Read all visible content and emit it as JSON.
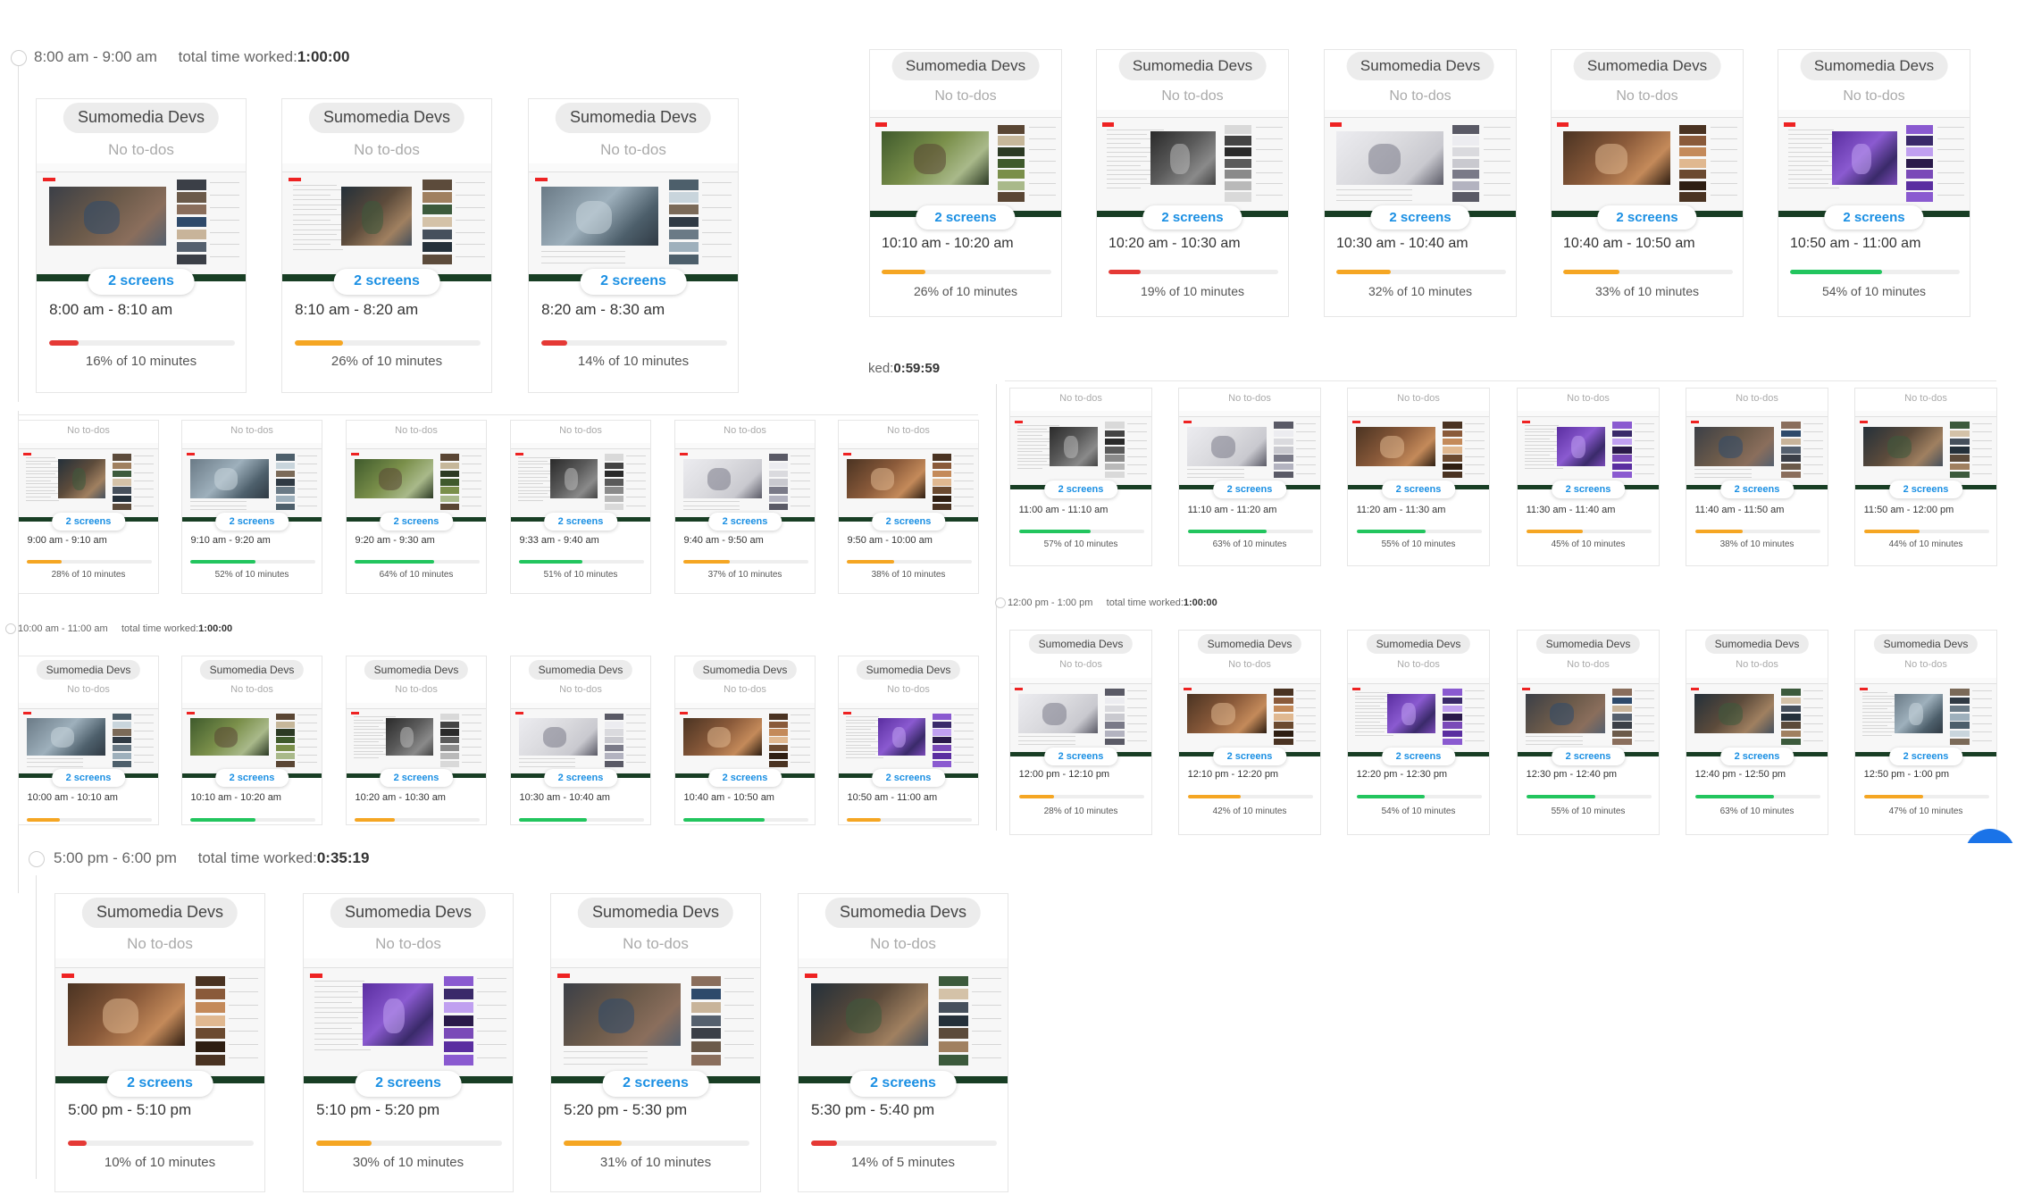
{
  "project": "Sumomedia Devs",
  "no_todos": "No to-dos",
  "screens_label": "2 screens",
  "colors": {
    "orange": "#f5a623",
    "red": "#e53935",
    "green": "#22c55e",
    "badge_text": "#1a8fe3",
    "dark_bar": "#183e24",
    "fab": "#1a73e8"
  },
  "total_label": "total time worked:",
  "sessions": {
    "s8": {
      "range": "8:00 am - 9:00 am",
      "total": "1:00:00",
      "cards": [
        {
          "time": "8:00 am - 8:10 am",
          "pct": 16,
          "pct_text": "16% of 10 minutes",
          "color": "red"
        },
        {
          "time": "8:10 am - 8:20 am",
          "pct": 26,
          "pct_text": "26% of 10 minutes",
          "color": "orange"
        },
        {
          "time": "8:20 am - 8:30 am",
          "pct": 14,
          "pct_text": "14% of 10 minutes",
          "color": "red"
        }
      ]
    },
    "s10top": {
      "cards": [
        {
          "time": "10:10 am - 10:20 am",
          "pct": 26,
          "pct_text": "26% of 10 minutes",
          "color": "orange"
        },
        {
          "time": "10:20 am - 10:30 am",
          "pct": 19,
          "pct_text": "19% of 10 minutes",
          "color": "red"
        },
        {
          "time": "10:30 am - 10:40 am",
          "pct": 32,
          "pct_text": "32% of 10 minutes",
          "color": "orange"
        },
        {
          "time": "10:40 am - 10:50 am",
          "pct": 33,
          "pct_text": "33% of 10 minutes",
          "color": "orange"
        },
        {
          "time": "10:50 am - 11:00 am",
          "pct": 54,
          "pct_text": "54% of 10 minutes",
          "color": "green"
        }
      ]
    },
    "s9": {
      "cards": [
        {
          "time": "9:00 am - 9:10 am",
          "pct": 28,
          "pct_text": "28% of 10 minutes",
          "color": "orange"
        },
        {
          "time": "9:10 am - 9:20 am",
          "pct": 52,
          "pct_text": "52% of 10 minutes",
          "color": "green"
        },
        {
          "time": "9:20 am - 9:30 am",
          "pct": 64,
          "pct_text": "64% of 10 minutes",
          "color": "green"
        },
        {
          "time": "9:33 am - 9:40 am",
          "pct": 51,
          "pct_text": "51% of 10 minutes",
          "color": "green"
        },
        {
          "time": "9:40 am - 9:50 am",
          "pct": 37,
          "pct_text": "37% of 10 minutes",
          "color": "orange"
        },
        {
          "time": "9:50 am - 10:00 am",
          "pct": 38,
          "pct_text": "38% of 10 minutes",
          "color": "orange"
        }
      ]
    },
    "s11": {
      "total_fragment": "ked:",
      "total": "0:59:59",
      "cards": [
        {
          "time": "11:00 am - 11:10 am",
          "pct": 57,
          "pct_text": "57% of 10 minutes",
          "color": "green"
        },
        {
          "time": "11:10 am - 11:20 am",
          "pct": 63,
          "pct_text": "63% of 10 minutes",
          "color": "green"
        },
        {
          "time": "11:20 am - 11:30 am",
          "pct": 55,
          "pct_text": "55% of 10 minutes",
          "color": "green"
        },
        {
          "time": "11:30 am - 11:40 am",
          "pct": 45,
          "pct_text": "45% of 10 minutes",
          "color": "orange"
        },
        {
          "time": "11:40 am - 11:50 am",
          "pct": 38,
          "pct_text": "38% of 10 minutes",
          "color": "orange"
        },
        {
          "time": "11:50 am - 12:00 pm",
          "pct": 44,
          "pct_text": "44% of 10 minutes",
          "color": "orange"
        }
      ]
    },
    "s10": {
      "range": "10:00 am - 11:00 am",
      "total": "1:00:00",
      "cards": [
        {
          "time": "10:00 am - 10:10 am",
          "pct": 26,
          "color": "orange"
        },
        {
          "time": "10:10 am - 10:20 am",
          "pct": 52,
          "color": "green"
        },
        {
          "time": "10:20 am - 10:30 am",
          "pct": 32,
          "color": "orange"
        },
        {
          "time": "10:30 am - 10:40 am",
          "pct": 54,
          "color": "green"
        },
        {
          "time": "10:40 am - 10:50 am",
          "pct": 65,
          "color": "green"
        },
        {
          "time": "10:50 am - 11:00 am",
          "pct": 27,
          "color": "orange"
        }
      ]
    },
    "s12": {
      "range": "12:00 pm - 1:00 pm",
      "total": "1:00:00",
      "cards": [
        {
          "time": "12:00 pm - 12:10 pm",
          "pct": 28,
          "pct_text": "28% of 10 minutes",
          "color": "orange"
        },
        {
          "time": "12:10 pm - 12:20 pm",
          "pct": 42,
          "pct_text": "42% of 10 minutes",
          "color": "orange"
        },
        {
          "time": "12:20 pm - 12:30 pm",
          "pct": 54,
          "pct_text": "54% of 10 minutes",
          "color": "green"
        },
        {
          "time": "12:30 pm - 12:40 pm",
          "pct": 55,
          "pct_text": "55% of 10 minutes",
          "color": "green"
        },
        {
          "time": "12:40 pm - 12:50 pm",
          "pct": 63,
          "pct_text": "63% of 10 minutes",
          "color": "green"
        },
        {
          "time": "12:50 pm - 1:00 pm",
          "pct": 47,
          "pct_text": "47% of 10 minutes",
          "color": "orange"
        }
      ]
    },
    "s17": {
      "range": "5:00 pm - 6:00 pm",
      "total": "0:35:19",
      "cards": [
        {
          "time": "5:00 pm - 5:10 pm",
          "pct": 10,
          "pct_text": "10% of 10 minutes",
          "color": "red"
        },
        {
          "time": "5:10 pm - 5:20 pm",
          "pct": 30,
          "pct_text": "30% of 10 minutes",
          "color": "orange"
        },
        {
          "time": "5:20 pm - 5:30 pm",
          "pct": 31,
          "pct_text": "31% of 10 minutes",
          "color": "orange"
        },
        {
          "time": "5:30 pm - 5:40 pm",
          "pct": 14,
          "pct_text": "14% of 5 minutes",
          "color": "red"
        }
      ]
    }
  }
}
